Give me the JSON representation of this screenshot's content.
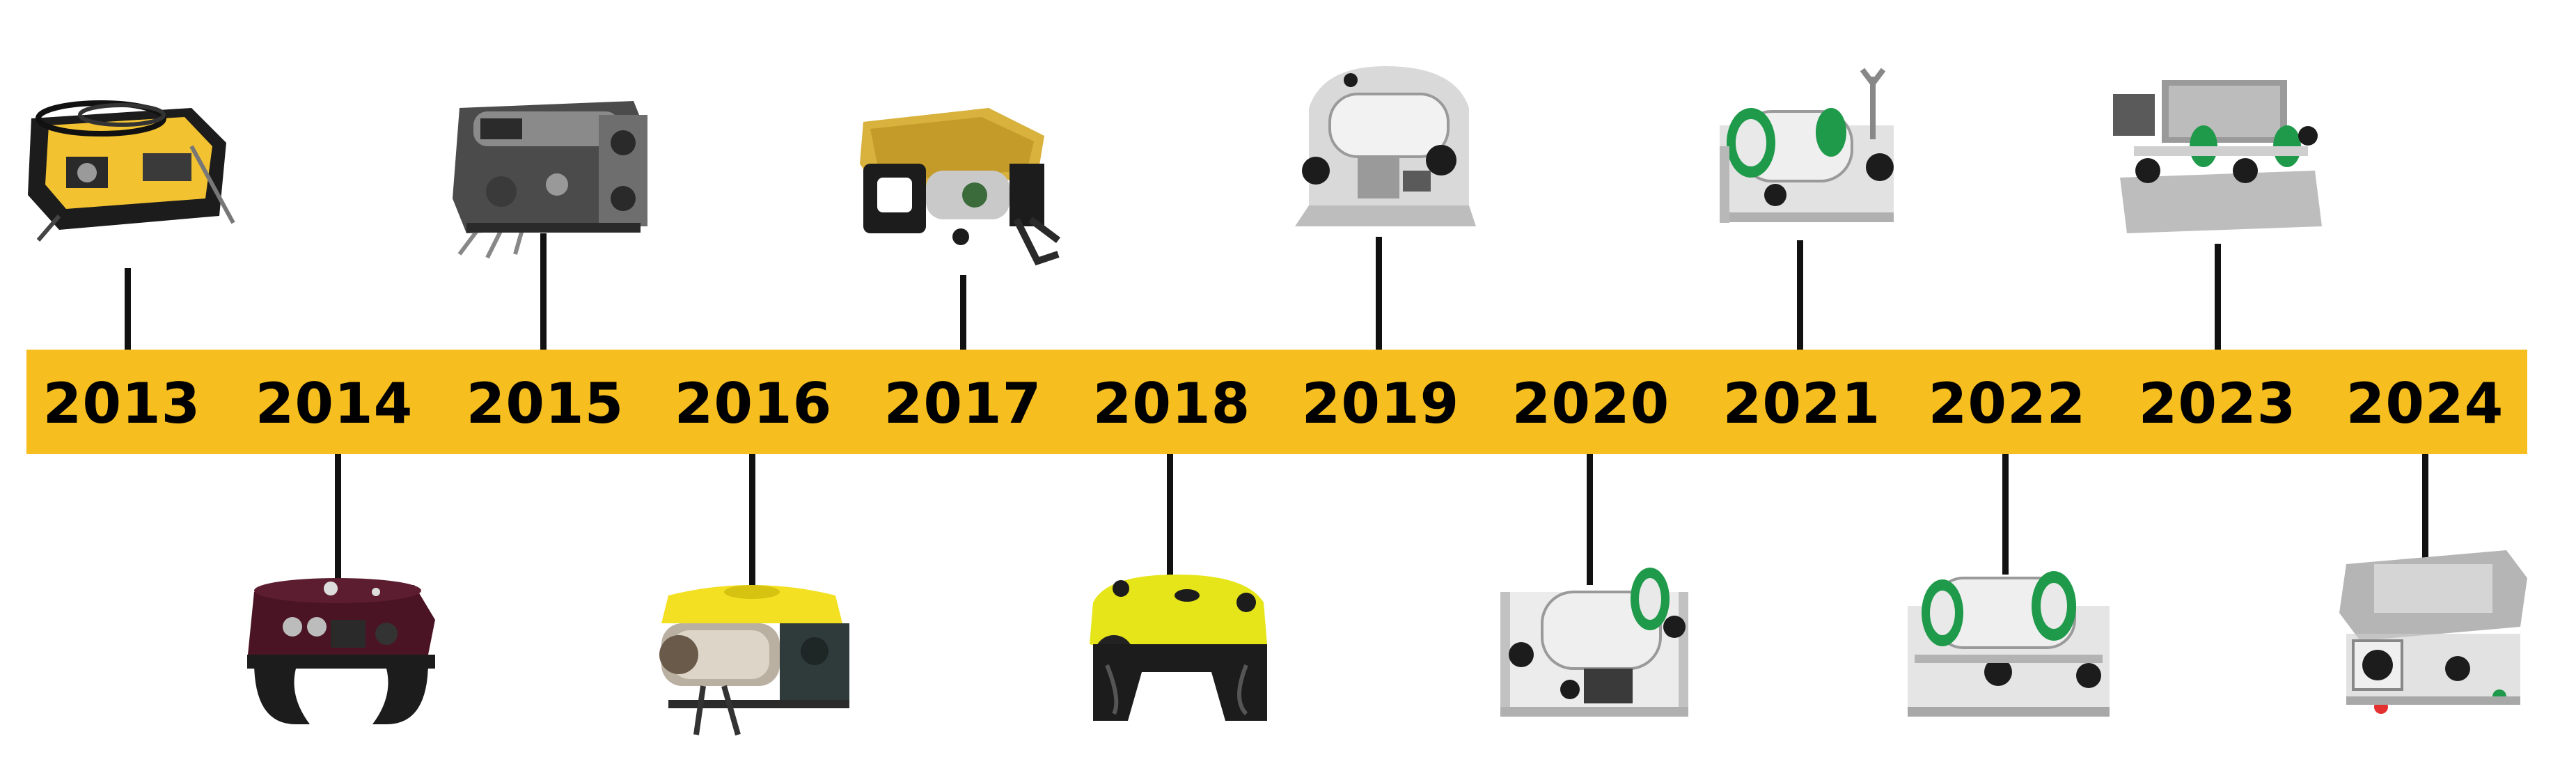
{
  "colors": {
    "timeline_bar": "#F6BE1E",
    "stem": "#111111",
    "year_text": "#000000"
  },
  "timeline": [
    {
      "year": "2013",
      "side": "top",
      "image": "rov-2013-image",
      "body_color": "#F2C230",
      "frame_color": "#1c1c1c"
    },
    {
      "year": "2014",
      "side": "bottom",
      "image": "rov-2014-image",
      "body_color": "#4A1424",
      "frame_color": "#1c1c1c"
    },
    {
      "year": "2015",
      "side": "top",
      "image": "rov-2015-image",
      "body_color": "#6E6E6E",
      "frame_color": "#2a2a2a"
    },
    {
      "year": "2016",
      "side": "bottom",
      "image": "rov-2016-image",
      "body_color": "#F4E022",
      "frame_color": "#1c1c1c"
    },
    {
      "year": "2017",
      "side": "top",
      "image": "rov-2017-image",
      "body_color": "#D8B23C",
      "frame_color": "#1c1c1c"
    },
    {
      "year": "2018",
      "side": "bottom",
      "image": "rov-2018-image",
      "body_color": "#E6E51A",
      "frame_color": "#1c1c1c"
    },
    {
      "year": "2019",
      "side": "top",
      "image": "rov-2019-image",
      "body_color": "#D9D9D9",
      "frame_color": "#2a2a2a"
    },
    {
      "year": "2020",
      "side": "bottom",
      "image": "rov-2020-image",
      "body_color": "#D9D9D9",
      "frame_color": "#2a2a2a"
    },
    {
      "year": "2021",
      "side": "top",
      "image": "rov-2021-image",
      "body_color": "#CFCFCF",
      "frame_color": "#2a2a2a"
    },
    {
      "year": "2022",
      "side": "bottom",
      "image": "rov-2022-image",
      "body_color": "#CFCFCF",
      "frame_color": "#2a2a2a"
    },
    {
      "year": "2023",
      "side": "top",
      "image": "rov-2023-image",
      "body_color": "#CFCFCF",
      "frame_color": "#2a2a2a"
    },
    {
      "year": "2024",
      "side": "bottom",
      "image": "rov-2024-image",
      "body_color": "#CFCFCF",
      "frame_color": "#2a2a2a"
    }
  ]
}
